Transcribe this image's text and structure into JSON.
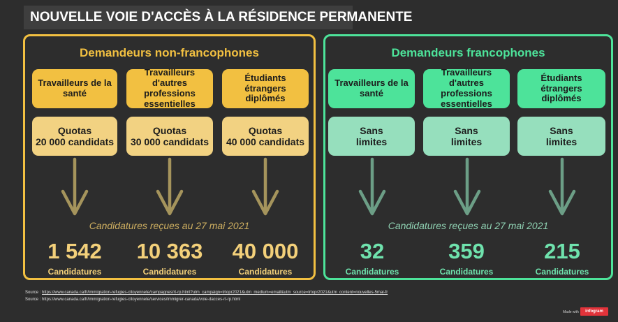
{
  "title": "NOUVELLE VOIE D'ACCÈS À LA RÉSIDENCE PERMANENTE",
  "colors": {
    "gold_border": "#f2c041",
    "gold_card": "#f2c041",
    "gold_quota": "#f2d282",
    "gold_arrow": "#a5945c",
    "green_border": "#4de39a",
    "green_card": "#4de39a",
    "green_quota": "#96dfbd",
    "green_arrow": "#6c9e86",
    "background": "#2d2d2d"
  },
  "left": {
    "heading": "Demandeurs non-francophones",
    "subtitle": "Candidatures reçues au 27 mai 2021",
    "columns": [
      {
        "category": "Travailleurs de la santé",
        "quota": [
          "Quotas",
          "20 000 candidats"
        ],
        "count": "1 542",
        "count_label": "Candidatures"
      },
      {
        "category": "Travailleurs d'autres professions essentielles",
        "quota": [
          "Quotas",
          "30 000 candidats"
        ],
        "count": "10 363",
        "count_label": "Candidatures"
      },
      {
        "category": "Étudiants étrangers diplômés",
        "quota": [
          "Quotas",
          "40 000 candidats"
        ],
        "count": "40 000",
        "count_label": "Candidatures"
      }
    ]
  },
  "right": {
    "heading": "Demandeurs francophones",
    "subtitle": "Candidatures reçues au 27 mai 2021",
    "columns": [
      {
        "category": "Travailleurs de la santé",
        "quota": [
          "Sans",
          "limites"
        ],
        "count": "32",
        "count_label": "Candidatures"
      },
      {
        "category": "Travailleurs d'autres professions essentielles",
        "quota": [
          "Sans",
          "limites"
        ],
        "count": "359",
        "count_label": "Candidatures"
      },
      {
        "category": "Étudiants étrangers diplômés",
        "quota": [
          "Sans",
          "limites"
        ],
        "count": "215",
        "count_label": "Candidatures"
      }
    ]
  },
  "sources": {
    "line1_prefix": "Source : ",
    "line1_link": "https://www.canada.ca/fr/immigration-refugies-citoyennete/campagnes/rt-rp.html?utm_campaign=trtopr2021&utm_medium=email&utm_source=trtopr2021&utm_content=nouvelles-5mai-fr",
    "line2": "Source : https://www.canada.ca/fr/immigration-refugies-citoyennete/services/immigrer-canada/voie-dacces-rt-rp.html"
  },
  "footer": {
    "made_with": "Made with",
    "brand": "infogram"
  }
}
